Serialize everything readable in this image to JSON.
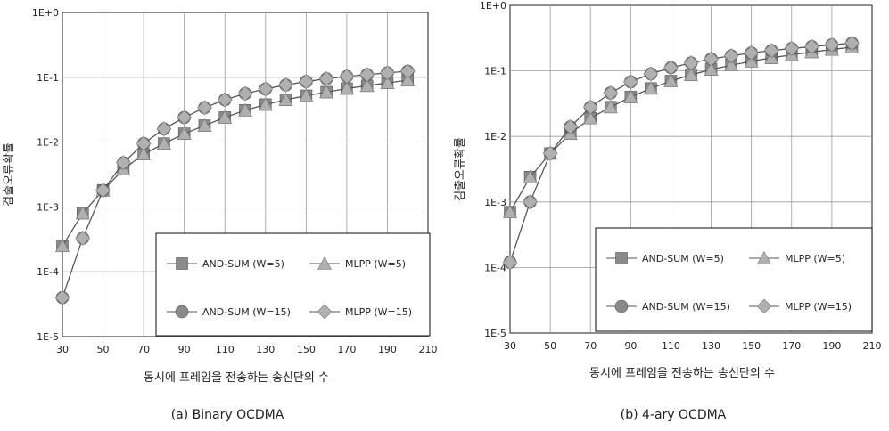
{
  "chart_data": [
    {
      "type": "line",
      "caption": "(a) Binary OCDMA",
      "xlabel": "동시에 프레임을 전송하는 송신단의 수",
      "ylabel": "검출오류확률",
      "y_scale": "log",
      "xlim": [
        30,
        210
      ],
      "ylim": [
        1e-05,
        1
      ],
      "x_ticks": [
        "30",
        "50",
        "70",
        "90",
        "110",
        "130",
        "150",
        "170",
        "190",
        "210"
      ],
      "y_ticks": [
        "1E-5",
        "1E-4",
        "1E-3",
        "1E-2",
        "1E-1",
        "1E+0"
      ],
      "grid": true,
      "legend_position": "bottom-right",
      "x": [
        30,
        40,
        50,
        60,
        70,
        80,
        90,
        100,
        110,
        120,
        130,
        140,
        150,
        160,
        170,
        180,
        190,
        200
      ],
      "series": [
        {
          "name": "AND-SUM (W=5)",
          "marker": "square",
          "color": "#8a8a8a",
          "values": [
            0.00025,
            0.0008,
            0.0018,
            0.0038,
            0.0065,
            0.0095,
            0.0135,
            0.018,
            0.024,
            0.031,
            0.038,
            0.045,
            0.052,
            0.059,
            0.067,
            0.074,
            0.082,
            0.09
          ]
        },
        {
          "name": "MLPP (W=5)",
          "marker": "triangle",
          "color": "#b0b0b0",
          "values": [
            0.00025,
            0.0008,
            0.0018,
            0.0038,
            0.0065,
            0.0095,
            0.0135,
            0.018,
            0.024,
            0.031,
            0.038,
            0.045,
            0.052,
            0.059,
            0.067,
            0.074,
            0.082,
            0.09
          ]
        },
        {
          "name": "AND-SUM (W=15)",
          "marker": "circle",
          "color": "#8a8a8a",
          "values": [
            4e-05,
            0.00033,
            0.0018,
            0.0048,
            0.0095,
            0.016,
            0.024,
            0.034,
            0.045,
            0.056,
            0.066,
            0.076,
            0.086,
            0.095,
            0.103,
            0.11,
            0.117,
            0.124
          ]
        },
        {
          "name": "MLPP (W=15)",
          "marker": "diamond",
          "color": "#b0b0b0",
          "values": [
            4e-05,
            0.00033,
            0.0018,
            0.0048,
            0.0095,
            0.016,
            0.024,
            0.034,
            0.045,
            0.056,
            0.066,
            0.076,
            0.086,
            0.095,
            0.103,
            0.11,
            0.117,
            0.124
          ]
        }
      ]
    },
    {
      "type": "line",
      "caption": "(b) 4-ary OCDMA",
      "xlabel": "동시에 프레임을 전송하는 송신단의 수",
      "ylabel": "검출오류확률",
      "y_scale": "log",
      "xlim": [
        30,
        210
      ],
      "ylim": [
        1e-05,
        1
      ],
      "x_ticks": [
        "30",
        "50",
        "70",
        "90",
        "110",
        "130",
        "150",
        "170",
        "190",
        "210"
      ],
      "y_ticks": [
        "1E-5",
        "1E-4",
        "1E-3",
        "1E-2",
        "1E-1",
        "1E+0"
      ],
      "grid": true,
      "legend_position": "bottom-right",
      "x": [
        30,
        40,
        50,
        60,
        70,
        80,
        90,
        100,
        110,
        120,
        130,
        140,
        150,
        160,
        170,
        180,
        190,
        200
      ],
      "series": [
        {
          "name": "AND-SUM (W=5)",
          "marker": "square",
          "color": "#8a8a8a",
          "values": [
            0.0007,
            0.0024,
            0.0055,
            0.011,
            0.019,
            0.028,
            0.04,
            0.054,
            0.07,
            0.087,
            0.105,
            0.122,
            0.14,
            0.158,
            0.176,
            0.194,
            0.212,
            0.23
          ]
        },
        {
          "name": "MLPP (W=5)",
          "marker": "triangle",
          "color": "#b0b0b0",
          "values": [
            0.0007,
            0.0024,
            0.0055,
            0.011,
            0.019,
            0.028,
            0.04,
            0.054,
            0.07,
            0.087,
            0.105,
            0.122,
            0.14,
            0.158,
            0.176,
            0.194,
            0.212,
            0.23
          ]
        },
        {
          "name": "AND-SUM (W=15)",
          "marker": "circle",
          "color": "#8a8a8a",
          "values": [
            0.00012,
            0.001,
            0.0055,
            0.014,
            0.028,
            0.046,
            0.068,
            0.09,
            0.112,
            0.132,
            0.152,
            0.17,
            0.188,
            0.204,
            0.22,
            0.235,
            0.25,
            0.265
          ]
        },
        {
          "name": "MLPP (W=15)",
          "marker": "diamond",
          "color": "#b0b0b0",
          "values": [
            0.00012,
            0.001,
            0.0055,
            0.014,
            0.028,
            0.046,
            0.068,
            0.09,
            0.112,
            0.132,
            0.152,
            0.17,
            0.188,
            0.204,
            0.22,
            0.235,
            0.25,
            0.265
          ]
        }
      ]
    }
  ]
}
